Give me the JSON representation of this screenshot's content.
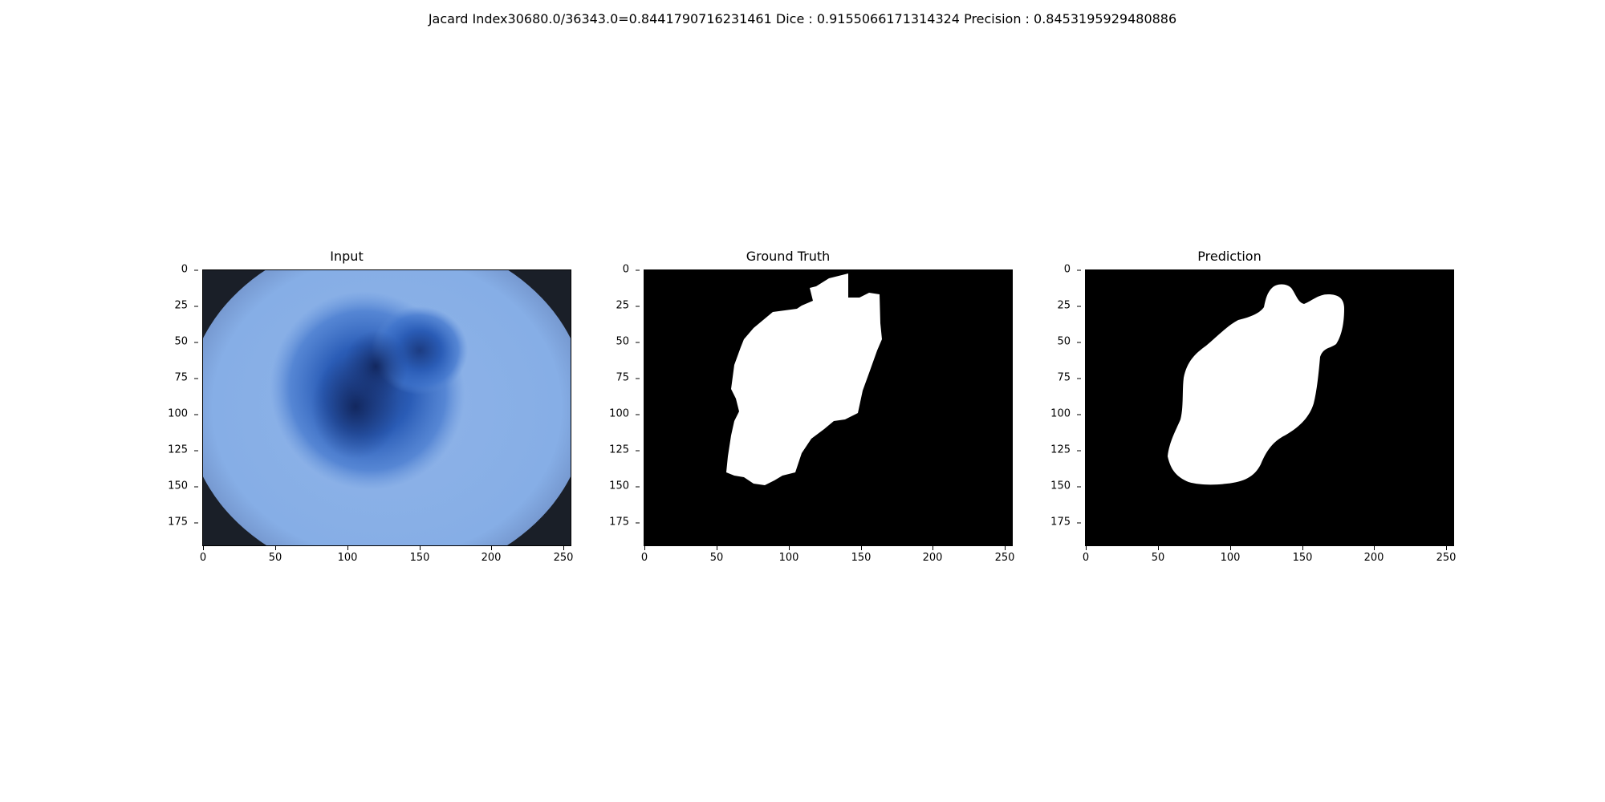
{
  "figure": {
    "suptitle": "Jacard Index30680.0/36343.0=0.8441790716231461 Dice : 0.9155066171314324 Precision : 0.8453195929480886"
  },
  "axes_common": {
    "xticks": [
      "0",
      "50",
      "100",
      "150",
      "200",
      "250"
    ],
    "yticks": [
      "0",
      "25",
      "50",
      "75",
      "100",
      "125",
      "150",
      "175"
    ]
  },
  "panels": [
    {
      "title": "Input",
      "content": "dermoscopy-image"
    },
    {
      "title": "Ground Truth",
      "content": "binary-mask"
    },
    {
      "title": "Prediction",
      "content": "binary-mask"
    }
  ]
}
